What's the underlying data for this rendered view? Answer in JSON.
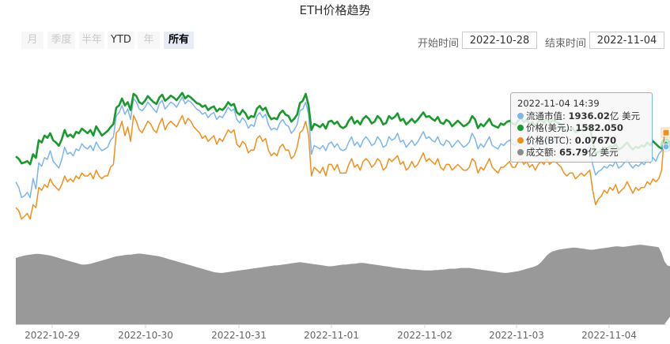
{
  "chart_data": {
    "title": "ETH价格趋势",
    "type": "line",
    "x_start": "2022-10-28 20:00",
    "x_step_hours": 1,
    "x_ticks": [
      "2022-10-29",
      "2022-10-30",
      "2022-10-31",
      "2022-11-01",
      "2022-11-02",
      "2022-11-03",
      "2022-11-04"
    ],
    "grid": false,
    "series": [
      {
        "name": "流通市值",
        "color": "#7cb5ec",
        "unit": "亿 美元",
        "values": [
          1830,
          1815,
          1785,
          1790,
          1800,
          1785,
          1840,
          1810,
          1885,
          1875,
          1900,
          1895,
          1920,
          1890,
          1880,
          1870,
          1895,
          1930,
          1910,
          1915,
          1905,
          1925,
          1920,
          1940,
          1930,
          1925,
          1935,
          1920,
          1945,
          1930,
          1920,
          1925,
          1930,
          1950,
          1960,
          2020,
          2030,
          2050,
          2025,
          2040,
          2010,
          2070,
          2060,
          2040,
          2035,
          2045,
          2060,
          2050,
          2040,
          2030,
          2055,
          2065,
          2040,
          2050,
          2060,
          2055,
          2045,
          2060,
          2075,
          2055,
          2065,
          2060,
          2050,
          2040,
          2035,
          2025,
          2030,
          2015,
          2025,
          2030,
          2010,
          2020,
          2015,
          2030,
          2045,
          2035,
          2040,
          2010,
          2000,
          2015,
          2005,
          1985,
          1995,
          1990,
          2020,
          2030,
          2015,
          2025,
          1995,
          1980,
          1985,
          1980,
          2000,
          2010,
          1995,
          1990,
          1970,
          1980,
          1995,
          2035,
          2040,
          2060,
          2025,
          1910,
          1935,
          1930,
          1925,
          1935,
          1920,
          1940,
          1945,
          1930,
          1940,
          1925,
          1920,
          1925,
          1945,
          1960,
          1935,
          1945,
          1930,
          1950,
          1960,
          1950,
          1935,
          1940,
          1960,
          1950,
          1930,
          1935,
          1960,
          1950,
          1955,
          1970,
          1945,
          1950,
          1930,
          1940,
          1950,
          1935,
          1945,
          1960,
          1975,
          1955,
          1960,
          1950,
          1945,
          1960,
          1940,
          1935,
          1950,
          1945,
          1930,
          1940,
          1950,
          1940,
          1930,
          1935,
          1945,
          1970,
          1955,
          1925,
          1940,
          1930,
          1945,
          1960,
          1935,
          1930,
          1925,
          1940,
          1935,
          1945,
          1950,
          1940,
          1935,
          1950,
          1960,
          1945,
          1955,
          1940,
          1950,
          1930,
          1950,
          1955,
          1945,
          1960,
          1945,
          1955,
          1950,
          1945,
          1940,
          1920,
          1915,
          1920,
          1925,
          1910,
          1915,
          1920,
          1915,
          1925,
          1935,
          1880,
          1850,
          1860,
          1865,
          1875,
          1870,
          1880,
          1875,
          1890,
          1870,
          1875,
          1885,
          1895,
          1880,
          1870,
          1880,
          1875,
          1885,
          1880,
          1895,
          1885,
          1900,
          1890,
          1910,
          1920,
          1936.02
        ]
      },
      {
        "name": "价格(美元)",
        "color": "#1a9a2e",
        "unit": "",
        "values": [
          1555,
          1550,
          1540,
          1542,
          1545,
          1538,
          1560,
          1552,
          1590,
          1585,
          1600,
          1595,
          1605,
          1590,
          1585,
          1578,
          1592,
          1612,
          1598,
          1602,
          1596,
          1608,
          1605,
          1615,
          1610,
          1605,
          1612,
          1600,
          1620,
          1610,
          1600,
          1605,
          1610,
          1618,
          1625,
          1660,
          1665,
          1680,
          1665,
          1672,
          1655,
          1690,
          1685,
          1672,
          1668,
          1675,
          1685,
          1678,
          1672,
          1668,
          1682,
          1688,
          1675,
          1680,
          1686,
          1682,
          1676,
          1684,
          1692,
          1680,
          1686,
          1682,
          1676,
          1670,
          1668,
          1662,
          1665,
          1655,
          1660,
          1663,
          1652,
          1658,
          1655,
          1662,
          1672,
          1665,
          1668,
          1650,
          1645,
          1655,
          1648,
          1636,
          1642,
          1640,
          1658,
          1664,
          1655,
          1660,
          1645,
          1635,
          1638,
          1635,
          1648,
          1654,
          1645,
          1642,
          1630,
          1636,
          1645,
          1670,
          1675,
          1690,
          1665,
          1612,
          1625,
          1622,
          1618,
          1625,
          1615,
          1630,
          1632,
          1625,
          1630,
          1620,
          1616,
          1620,
          1632,
          1640,
          1626,
          1632,
          1624,
          1636,
          1642,
          1636,
          1626,
          1630,
          1642,
          1636,
          1624,
          1627,
          1642,
          1636,
          1640,
          1648,
          1632,
          1636,
          1624,
          1630,
          1636,
          1628,
          1634,
          1642,
          1650,
          1640,
          1642,
          1636,
          1632,
          1640,
          1628,
          1625,
          1634,
          1630,
          1620,
          1626,
          1632,
          1626,
          1620,
          1623,
          1629,
          1642,
          1635,
          1616,
          1625,
          1620,
          1628,
          1636,
          1623,
          1620,
          1617,
          1626,
          1623,
          1629,
          1632,
          1626,
          1623,
          1632,
          1638,
          1629,
          1634,
          1625,
          1630,
          1618,
          1630,
          1634,
          1627,
          1637,
          1627,
          1633,
          1630,
          1627,
          1624,
          1613,
          1610,
          1613,
          1616,
          1607,
          1610,
          1613,
          1610,
          1616,
          1622,
          1585,
          1560,
          1565,
          1568,
          1574,
          1571,
          1577,
          1574,
          1582,
          1570,
          1573,
          1579,
          1585,
          1576,
          1570,
          1576,
          1573,
          1579,
          1576,
          1585,
          1579,
          1588,
          1582,
          1576,
          1572,
          1582.05
        ]
      },
      {
        "name": "价格(BTC)",
        "color": "#f28f1c",
        "unit": "",
        "values": [
          0.0741,
          0.074,
          0.0737,
          0.0738,
          0.0739,
          0.0737,
          0.0742,
          0.0741,
          0.0748,
          0.0747,
          0.0749,
          0.0748,
          0.0751,
          0.0749,
          0.0748,
          0.0747,
          0.0749,
          0.0752,
          0.075,
          0.0751,
          0.075,
          0.0752,
          0.0751,
          0.0753,
          0.0752,
          0.0752,
          0.0753,
          0.0751,
          0.0754,
          0.0752,
          0.0751,
          0.0752,
          0.0752,
          0.0755,
          0.0756,
          0.0767,
          0.0768,
          0.0771,
          0.0766,
          0.0769,
          0.0764,
          0.0773,
          0.0771,
          0.0768,
          0.0767,
          0.0769,
          0.0771,
          0.077,
          0.0768,
          0.0767,
          0.077,
          0.0772,
          0.0768,
          0.077,
          0.0771,
          0.077,
          0.0769,
          0.0771,
          0.0773,
          0.077,
          0.0772,
          0.0771,
          0.0769,
          0.0768,
          0.0767,
          0.0765,
          0.0766,
          0.0764,
          0.0765,
          0.0766,
          0.0763,
          0.0765,
          0.0764,
          0.0766,
          0.0768,
          0.0767,
          0.0768,
          0.0763,
          0.0762,
          0.0764,
          0.0763,
          0.076,
          0.0761,
          0.0761,
          0.0765,
          0.0766,
          0.0764,
          0.0765,
          0.0761,
          0.0759,
          0.076,
          0.0759,
          0.0762,
          0.0763,
          0.0761,
          0.0761,
          0.0758,
          0.0759,
          0.0762,
          0.0767,
          0.0768,
          0.0771,
          0.0766,
          0.0752,
          0.0755,
          0.0754,
          0.0753,
          0.0755,
          0.0752,
          0.0756,
          0.0756,
          0.0754,
          0.0756,
          0.0753,
          0.0753,
          0.0753,
          0.0756,
          0.0758,
          0.0755,
          0.0756,
          0.0754,
          0.0757,
          0.0758,
          0.0757,
          0.0755,
          0.0756,
          0.0758,
          0.0757,
          0.0754,
          0.0755,
          0.0758,
          0.0757,
          0.0758,
          0.0759,
          0.0756,
          0.0757,
          0.0754,
          0.0755,
          0.0757,
          0.0755,
          0.0756,
          0.0758,
          0.076,
          0.0757,
          0.0758,
          0.0757,
          0.0756,
          0.0758,
          0.0755,
          0.0754,
          0.0756,
          0.0756,
          0.0754,
          0.0755,
          0.0756,
          0.0755,
          0.0754,
          0.0754,
          0.0755,
          0.0758,
          0.0757,
          0.0753,
          0.0755,
          0.0754,
          0.0756,
          0.0758,
          0.0755,
          0.0754,
          0.0753,
          0.0755,
          0.0755,
          0.0756,
          0.0757,
          0.0755,
          0.0755,
          0.0757,
          0.0758,
          0.0756,
          0.0757,
          0.0755,
          0.0756,
          0.0754,
          0.0756,
          0.0757,
          0.0756,
          0.0758,
          0.0756,
          0.0757,
          0.0757,
          0.0756,
          0.0755,
          0.0753,
          0.0752,
          0.0753,
          0.0753,
          0.0751,
          0.0752,
          0.0753,
          0.0752,
          0.0753,
          0.0754,
          0.0747,
          0.0742,
          0.0744,
          0.0745,
          0.0747,
          0.0746,
          0.0748,
          0.0747,
          0.0749,
          0.0746,
          0.0747,
          0.0748,
          0.075,
          0.0748,
          0.0746,
          0.0748,
          0.0747,
          0.0748,
          0.0748,
          0.075,
          0.0749,
          0.0751,
          0.075,
          0.0751,
          0.0754,
          0.0767
        ]
      },
      {
        "name": "成交额",
        "color": "#8c8c8c",
        "unit": "亿 美元",
        "values": [
          80,
          81,
          82,
          83,
          83.5,
          84,
          84.5,
          85,
          85,
          84.5,
          84,
          83.5,
          83,
          82,
          81,
          80,
          79,
          78,
          77,
          76,
          75,
          74,
          73,
          72,
          72,
          72.5,
          73,
          74,
          75,
          76,
          77,
          78,
          79,
          80,
          81,
          82,
          82.5,
          83,
          83.5,
          84,
          84,
          84.5,
          85,
          85.5,
          85,
          84.5,
          84,
          83.5,
          83,
          82.5,
          82,
          81,
          80,
          79,
          78,
          77,
          76,
          75,
          74,
          73,
          72,
          71,
          70,
          69,
          68,
          67,
          66,
          65,
          64,
          63,
          62.5,
          62,
          62,
          62.5,
          63,
          63.5,
          64,
          64.5,
          65,
          65.5,
          66,
          66.5,
          67,
          67.5,
          68,
          68.5,
          69,
          69.5,
          70,
          70.5,
          71,
          71,
          71.5,
          72,
          72.5,
          73,
          73.5,
          74,
          74.5,
          75,
          74.5,
          74,
          73.5,
          73,
          72.5,
          72,
          71.5,
          71,
          70.5,
          70,
          70,
          70.5,
          71,
          71.5,
          72,
          72,
          72.5,
          73,
          73,
          73.5,
          74,
          74,
          73.5,
          73,
          72.5,
          72,
          71.5,
          71,
          70.5,
          70,
          69.5,
          69,
          68.5,
          68,
          67.5,
          67,
          67,
          66.5,
          66,
          66,
          65.5,
          65.5,
          65,
          65,
          65,
          65,
          65.5,
          65.5,
          66,
          66,
          66.5,
          67,
          67,
          67,
          67.5,
          68,
          68,
          68,
          68,
          67.5,
          67,
          66.5,
          66,
          65.5,
          65,
          64.5,
          64,
          63.5,
          63,
          62.5,
          62,
          62,
          62.5,
          63,
          63.5,
          64,
          65,
          66,
          67,
          68,
          69,
          70,
          72,
          75,
          79,
          83,
          86,
          88,
          89,
          90,
          90.5,
          91,
          91.5,
          92,
          92.5,
          92.5,
          92,
          91.5,
          91,
          90.5,
          90,
          90,
          90.5,
          91,
          91.5,
          92,
          92.5,
          93,
          93.5,
          94,
          94,
          93.5,
          93.5,
          94,
          94.5,
          95,
          95.5,
          96,
          96,
          95.5,
          95,
          94.5,
          94,
          93.5,
          93,
          86,
          76,
          71,
          70,
          69.5,
          69,
          68.5,
          68,
          67.5,
          67,
          66.8,
          66.6,
          66.4,
          66.2,
          66,
          65.79
        ]
      }
    ]
  },
  "controls": {
    "range_buttons": [
      "月",
      "季度",
      "半年",
      "YTD",
      "年",
      "所有"
    ],
    "range_selected": "所有",
    "start_label": "开始时间",
    "start_value": "2022-10-28",
    "end_label": "结束时间",
    "end_value": "2022-11-04"
  },
  "tooltip": {
    "time": "2022-11-04 14:39",
    "rows": [
      {
        "label": "流通市值: ",
        "value": "1936.02",
        "suffix": "亿 美元",
        "color": "#7cb5ec"
      },
      {
        "label": "价格(美元): ",
        "value": "1582.050",
        "suffix": "",
        "color": "#1a9a2e"
      },
      {
        "label": "价格(BTC): ",
        "value": "0.07670",
        "suffix": "",
        "color": "#f28f1c"
      },
      {
        "label": "成交额: ",
        "value": "65.79",
        "suffix": "亿 美元",
        "color": "#8c8c8c"
      }
    ]
  }
}
